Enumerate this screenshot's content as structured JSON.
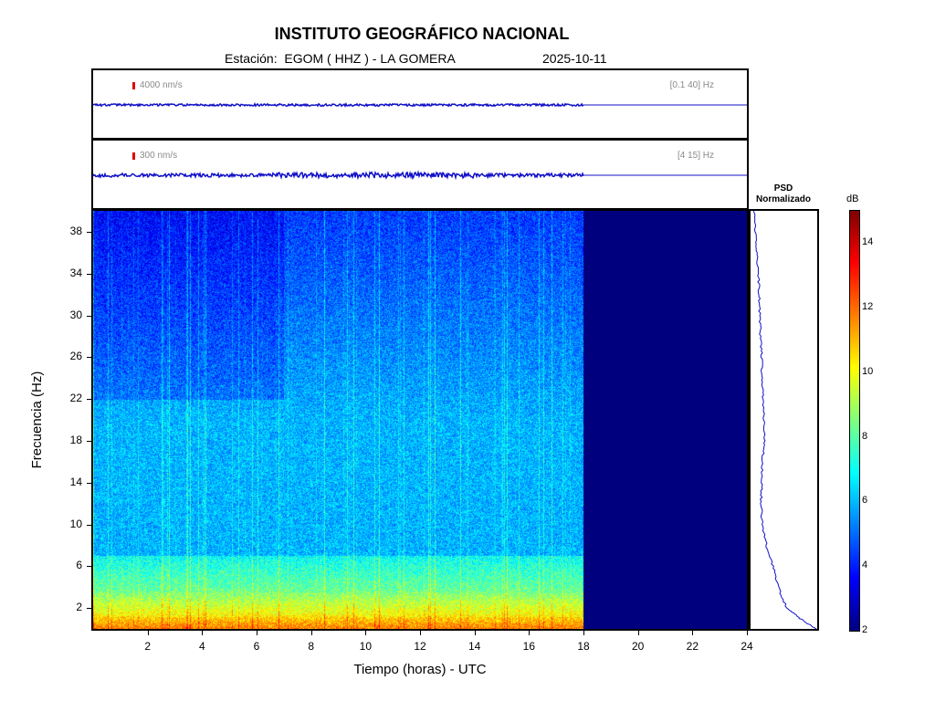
{
  "header": {
    "title": "INSTITUTO GEOGRÁFICO NACIONAL",
    "station_label": "Estación:  EGOM ( HHZ ) - LA GOMERA",
    "date": "2025-10-11"
  },
  "traces": [
    {
      "amplitude_label": "4000 nm/s",
      "filter_label": "[0.1 40] Hz"
    },
    {
      "amplitude_label": "300 nm/s",
      "filter_label": "[4 15] Hz"
    }
  ],
  "psd": {
    "title_line1": "PSD",
    "title_line2": "Normalizado"
  },
  "colorbar": {
    "unit": "dB",
    "min": 2,
    "max": 15,
    "ticks": [
      "14",
      "12",
      "10",
      "8",
      "6",
      "4",
      "2"
    ],
    "colormap": [
      "#00007f",
      "#0000ff",
      "#007fff",
      "#00ffff",
      "#7fff7f",
      "#ffff00",
      "#ff7f00",
      "#ff0000",
      "#7f0000"
    ]
  },
  "chart_data": {
    "type": "heatmap",
    "xlabel": "Tiempo (horas) - UTC",
    "ylabel": "Frecuencia  (Hz)",
    "xlim": [
      0,
      24
    ],
    "ylim": [
      0,
      40
    ],
    "x_ticks": [
      "2",
      "4",
      "6",
      "8",
      "10",
      "12",
      "14",
      "16",
      "18",
      "20",
      "22",
      "24"
    ],
    "y_ticks": [
      "38",
      "34",
      "30",
      "26",
      "22",
      "18",
      "14",
      "10",
      "6",
      "2"
    ],
    "data_end_hour": 18,
    "psd_profile": {
      "freq": [
        40,
        38,
        36,
        34,
        32,
        30,
        28,
        26,
        24,
        22,
        20,
        18,
        16,
        14,
        12,
        10,
        8,
        6,
        4,
        2,
        1,
        0
      ],
      "value": [
        0.05,
        0.07,
        0.09,
        0.12,
        0.13,
        0.14,
        0.15,
        0.17,
        0.18,
        0.19,
        0.2,
        0.21,
        0.18,
        0.17,
        0.16,
        0.18,
        0.24,
        0.34,
        0.42,
        0.55,
        0.75,
        1.0
      ]
    }
  }
}
